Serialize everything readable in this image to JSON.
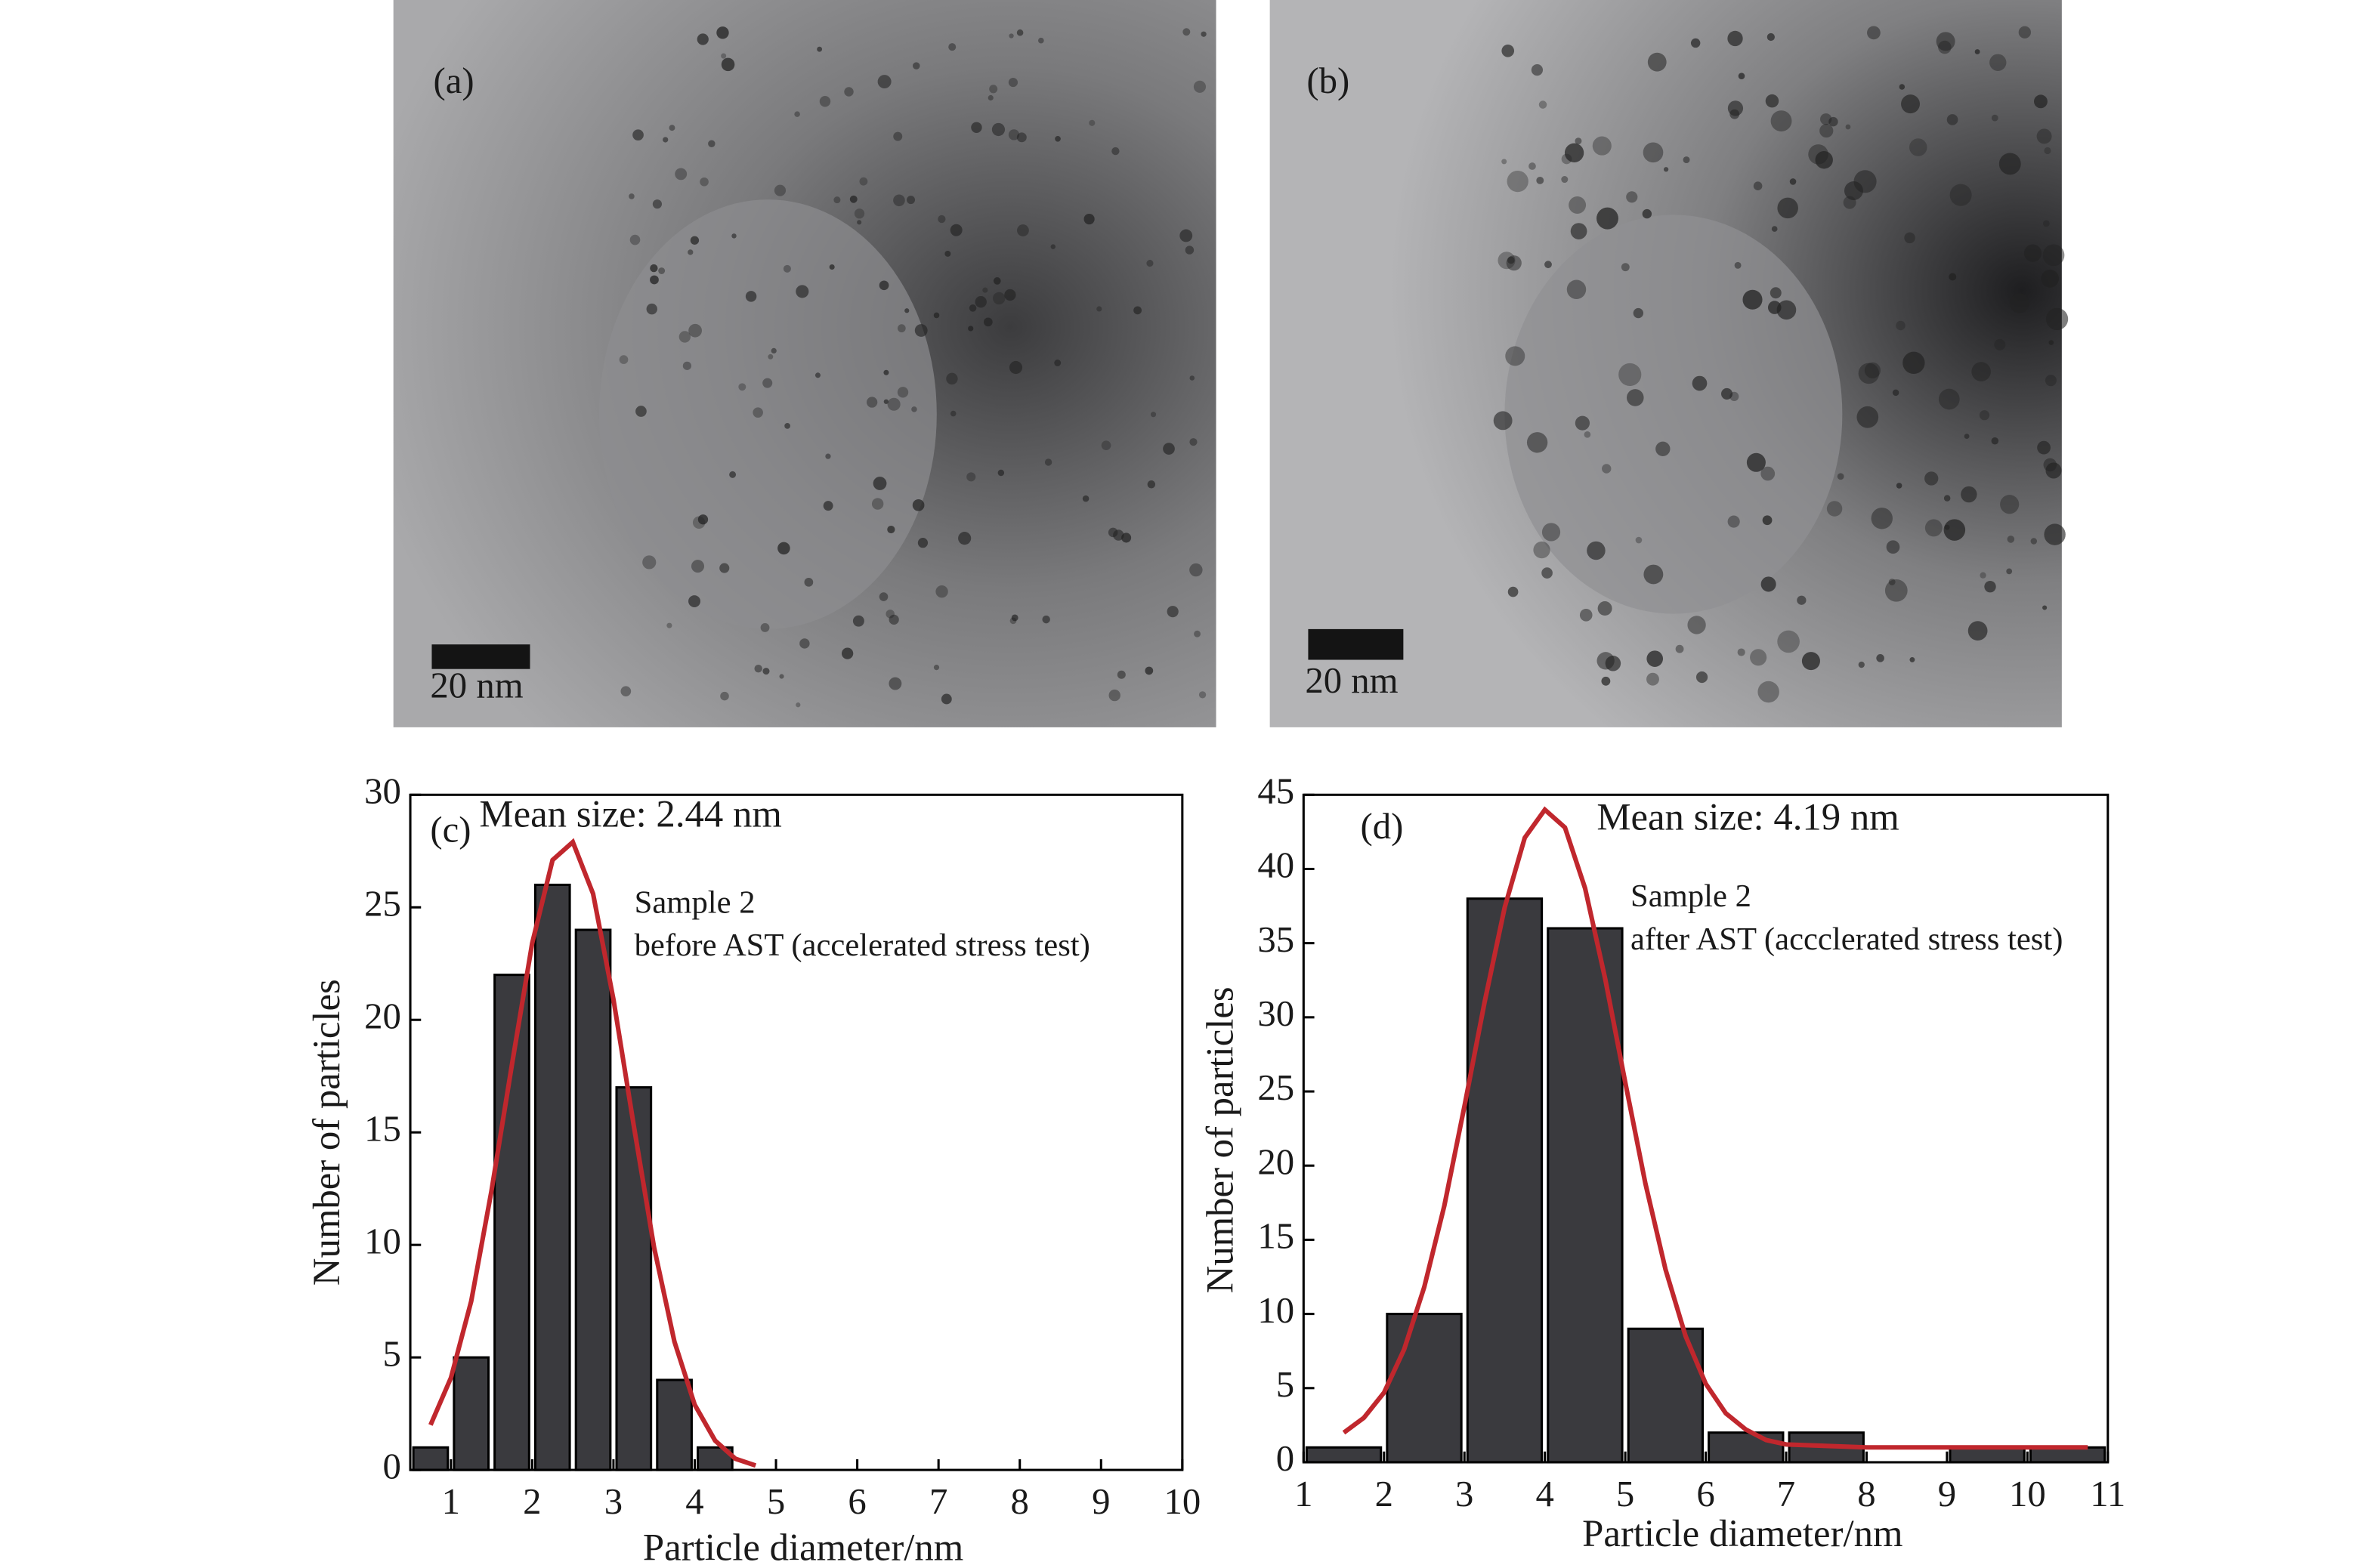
{
  "images": [
    {
      "label": "(a)",
      "scale_bar": "20 nm"
    },
    {
      "label": "(b)",
      "scale_bar": "20 nm"
    }
  ],
  "chart_data": [
    {
      "type": "histogram",
      "panel_label": "(c)",
      "annotation": "Mean size: 2.44 nm",
      "sample": "Sample 2",
      "condition": "before AST (accelerated stress test)",
      "x_label": "Particle diameter/nm",
      "y_label": "Number of particles",
      "bins": [
        0.5,
        1.0,
        1.5,
        2.0,
        2.5,
        3.0,
        3.5,
        4.0,
        4.5
      ],
      "values": [
        1,
        5,
        22,
        26,
        24,
        17,
        4,
        1
      ],
      "color": "#3a3a3e",
      "fit": {
        "color": "#c0272d",
        "x": [
          0.75,
          1.0,
          1.25,
          1.5,
          1.75,
          2.0,
          2.25,
          2.5,
          2.75,
          3.0,
          3.25,
          3.5,
          3.75,
          4.0,
          4.25,
          4.5,
          4.75
        ],
        "values": [
          2.0,
          4.1,
          7.5,
          12.4,
          18.0,
          23.4,
          27.1,
          27.9,
          25.6,
          20.9,
          15.3,
          9.9,
          5.7,
          2.9,
          1.3,
          0.5,
          0.2
        ]
      },
      "xlim": [
        0.5,
        10
      ],
      "xticks": [
        1,
        2,
        3,
        4,
        5,
        6,
        7,
        8,
        9,
        10
      ],
      "ylim": [
        0,
        30
      ],
      "yticks": [
        0,
        5,
        10,
        15,
        20,
        25,
        30
      ]
    },
    {
      "type": "histogram",
      "panel_label": "(d)",
      "annotation": "Mean size: 4.19 nm",
      "sample": "Sample 2",
      "condition": "after AST (accclerated stress test)",
      "x_label": "Particle diameter/nm",
      "y_label": "Number of particles",
      "bins": [
        1,
        2,
        3,
        4,
        5,
        6,
        7,
        8,
        9,
        10,
        11
      ],
      "values": [
        1,
        10,
        38,
        36,
        9,
        2,
        2,
        0,
        1,
        1
      ],
      "color": "#3a3a3e",
      "fit": {
        "color": "#c0272d",
        "x": [
          1.5,
          1.75,
          2.0,
          2.25,
          2.5,
          2.75,
          3.0,
          3.25,
          3.5,
          3.75,
          4.0,
          4.25,
          4.5,
          4.75,
          5.0,
          5.25,
          5.5,
          5.75,
          6.0,
          6.25,
          6.5,
          6.75,
          7,
          8,
          9,
          10,
          10.75
        ],
        "values": [
          2.0,
          3.0,
          4.7,
          7.6,
          11.8,
          17.3,
          24.0,
          31.0,
          37.4,
          42.1,
          44.0,
          42.8,
          38.7,
          32.6,
          25.6,
          18.8,
          13.0,
          8.5,
          5.3,
          3.3,
          2.2,
          1.5,
          1.2,
          1.0,
          1.0,
          1.0,
          1.0
        ]
      },
      "xlim": [
        1,
        11
      ],
      "xticks": [
        1,
        2,
        3,
        4,
        5,
        6,
        7,
        8,
        9,
        10,
        11
      ],
      "ylim": [
        0,
        45
      ],
      "yticks": [
        0,
        5,
        10,
        15,
        20,
        25,
        30,
        35,
        40,
        45
      ]
    }
  ]
}
